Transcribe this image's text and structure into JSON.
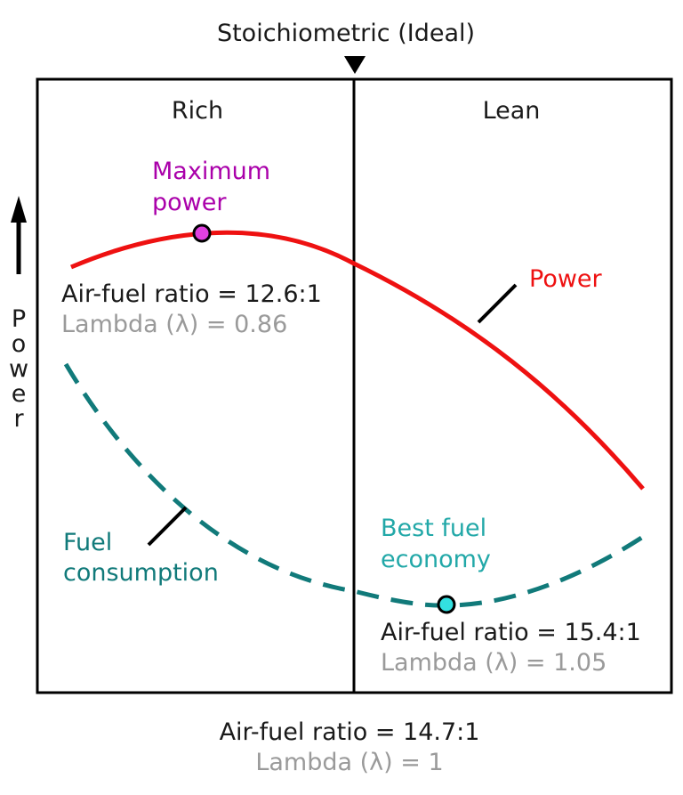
{
  "header": {
    "label": "Stoichiometric (Ideal)"
  },
  "regions": {
    "left": "Rich",
    "right": "Lean"
  },
  "y_axis": {
    "label": "Power"
  },
  "power_curve": {
    "label": "Power",
    "color": "#ee1111",
    "peak": {
      "title_line1": "Maximum",
      "title_line2": "power",
      "color": "#aa00aa",
      "afr": "Air-fuel ratio = 12.6:1",
      "lambda": "Lambda (λ) = 0.86"
    }
  },
  "fuel_curve": {
    "label_line1": "Fuel",
    "label_line2": "consumption",
    "color": "#117a7a",
    "minimum": {
      "title_line1": "Best fuel",
      "title_line2": "economy",
      "color": "#22a8a8",
      "afr": "Air-fuel ratio = 15.4:1",
      "lambda": "Lambda (λ) = 1.05"
    }
  },
  "stoichiometric": {
    "afr": "Air-fuel ratio = 14.7:1",
    "lambda": "Lambda (λ) = 1"
  },
  "colors": {
    "text": "#1a1a1a",
    "muted": "#9a9a9a",
    "peak_marker": "#e040e0",
    "economy_marker": "#33e0e0"
  }
}
